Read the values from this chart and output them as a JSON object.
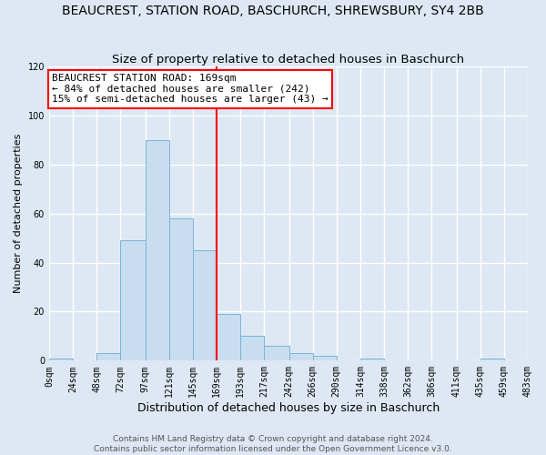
{
  "title": "BEAUCREST, STATION ROAD, BASCHURCH, SHREWSBURY, SY4 2BB",
  "subtitle": "Size of property relative to detached houses in Baschurch",
  "xlabel": "Distribution of detached houses by size in Baschurch",
  "ylabel": "Number of detached properties",
  "bin_edges": [
    0,
    24,
    48,
    72,
    97,
    121,
    145,
    169,
    193,
    217,
    242,
    266,
    290,
    314,
    338,
    362,
    386,
    411,
    435,
    459,
    483
  ],
  "bin_counts": [
    1,
    0,
    3,
    49,
    90,
    58,
    45,
    19,
    10,
    6,
    3,
    2,
    0,
    1,
    0,
    0,
    0,
    0,
    1,
    0
  ],
  "bar_color": "#c9ddf0",
  "bar_edge_color": "#7ab4d8",
  "reference_line_x": 169,
  "reference_line_color": "red",
  "annotation_title": "BEAUCREST STATION ROAD: 169sqm",
  "annotation_line1": "← 84% of detached houses are smaller (242)",
  "annotation_line2": "15% of semi-detached houses are larger (43) →",
  "annotation_box_color": "white",
  "annotation_box_edge_color": "red",
  "bg_color": "#dde8f4",
  "plot_bg_color": "#dde8f4",
  "ylim": [
    0,
    120
  ],
  "yticks": [
    0,
    20,
    40,
    60,
    80,
    100,
    120
  ],
  "tick_labels": [
    "0sqm",
    "24sqm",
    "48sqm",
    "72sqm",
    "97sqm",
    "121sqm",
    "145sqm",
    "169sqm",
    "193sqm",
    "217sqm",
    "242sqm",
    "266sqm",
    "290sqm",
    "314sqm",
    "338sqm",
    "362sqm",
    "386sqm",
    "411sqm",
    "435sqm",
    "459sqm",
    "483sqm"
  ],
  "footer_line1": "Contains HM Land Registry data © Crown copyright and database right 2024.",
  "footer_line2": "Contains public sector information licensed under the Open Government Licence v3.0.",
  "grid_color": "white",
  "title_fontsize": 10,
  "subtitle_fontsize": 9.5,
  "xlabel_fontsize": 9,
  "ylabel_fontsize": 8,
  "tick_fontsize": 7,
  "annotation_fontsize": 8,
  "footer_fontsize": 6.5
}
